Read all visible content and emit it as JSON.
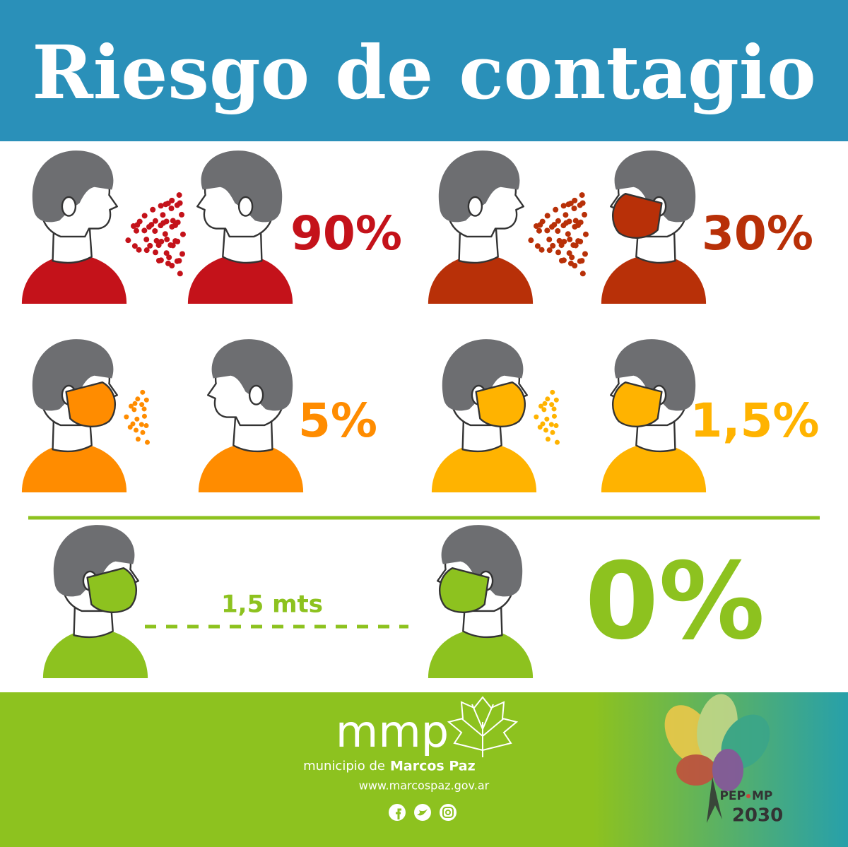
{
  "header": {
    "title": "Riesgo de contagio"
  },
  "panels": [
    {
      "risk": "90%"
    },
    {
      "risk": "30%"
    },
    {
      "risk": "5%"
    },
    {
      "risk": "1,5%"
    },
    {
      "distance": "1,5 mts",
      "risk": "0%"
    }
  ],
  "footer": {
    "logo": "mmp",
    "org_prefix": "municipio de",
    "org_name": "Marcos Paz",
    "url": "www.marcospaz.gov.ar",
    "plan": {
      "name_left": "PEP",
      "name_right": "MP",
      "year": "2030"
    }
  }
}
